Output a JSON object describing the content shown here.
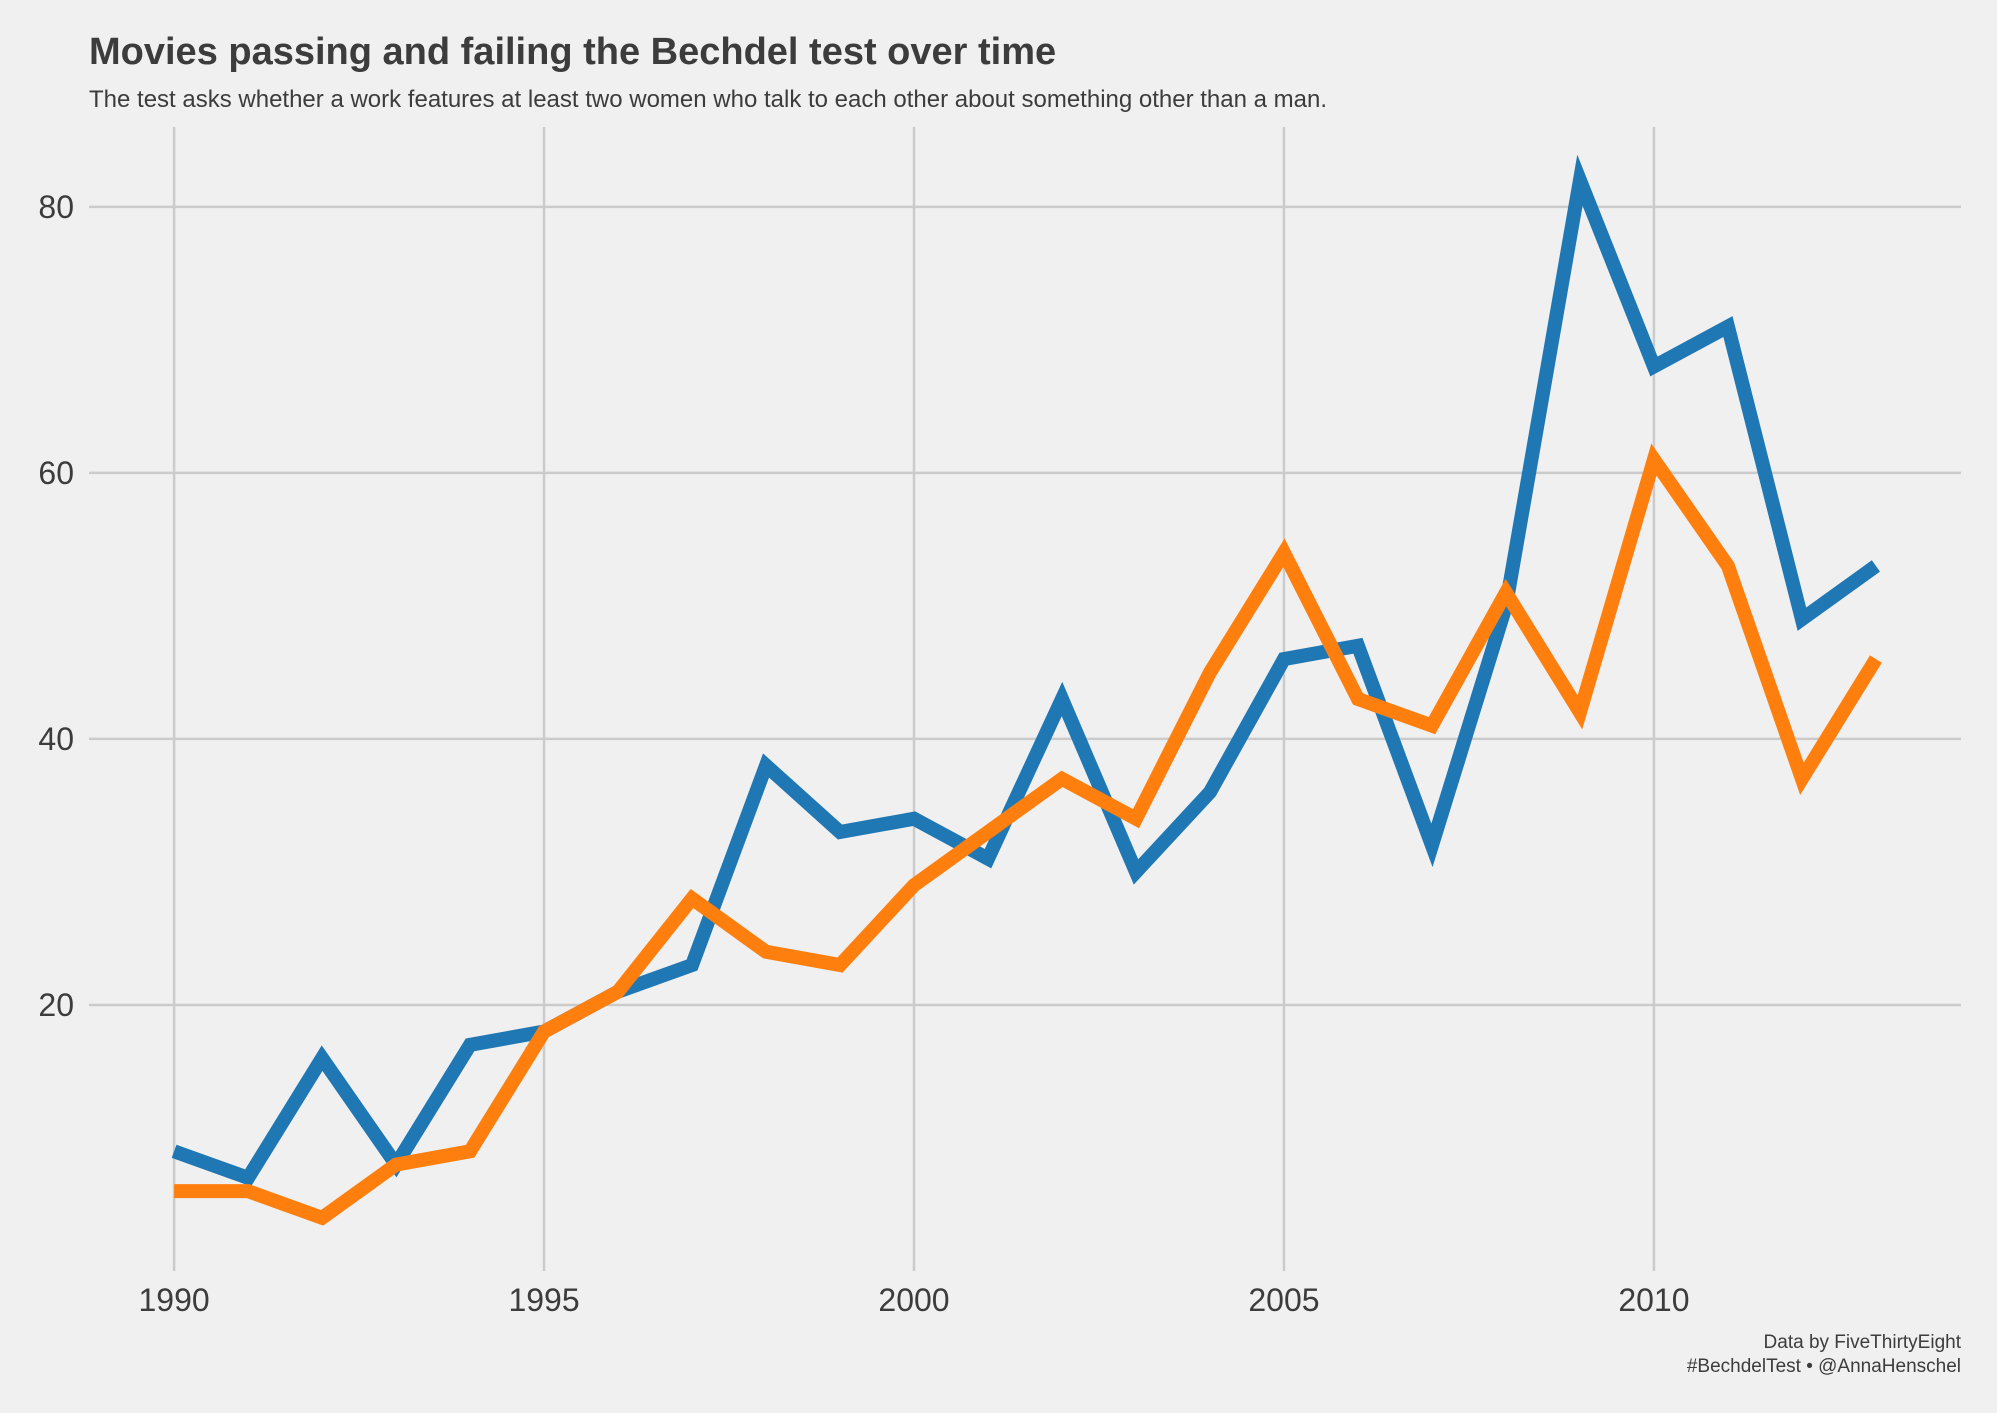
{
  "chart_data": {
    "type": "line",
    "title": "Movies passing and failing the Bechdel test over time",
    "subtitle": "The test asks whether a work features at least two women who talk to each other about something other than a man.",
    "credits": [
      "Data by FiveThirtyEight",
      "#BechdelTest • @AnnaHenschel"
    ],
    "x": [
      1990,
      1991,
      1992,
      1993,
      1994,
      1995,
      1996,
      1997,
      1998,
      1999,
      2000,
      2001,
      2002,
      2003,
      2004,
      2005,
      2006,
      2007,
      2008,
      2009,
      2010,
      2011,
      2012,
      2013
    ],
    "series": [
      {
        "color": "#1f77b4",
        "values": [
          9,
          7,
          16,
          8,
          17,
          18,
          21,
          23,
          38,
          33,
          34,
          31,
          43,
          30,
          36,
          46,
          47,
          32,
          50,
          82,
          68,
          71,
          49,
          53
        ]
      },
      {
        "color": "#ff7f0e",
        "values": [
          6,
          6,
          4,
          8,
          9,
          18,
          21,
          28,
          24,
          23,
          29,
          33,
          37,
          34,
          45,
          54,
          43,
          41,
          51,
          42,
          61,
          53,
          37,
          46
        ]
      }
    ],
    "xlim": [
      1988.85,
      2014.15
    ],
    "xticks": [
      1990,
      1995,
      2000,
      2005,
      2010
    ],
    "ylim": [
      0,
      86
    ],
    "yticks": [
      20,
      40,
      60,
      80
    ],
    "grid": true
  }
}
